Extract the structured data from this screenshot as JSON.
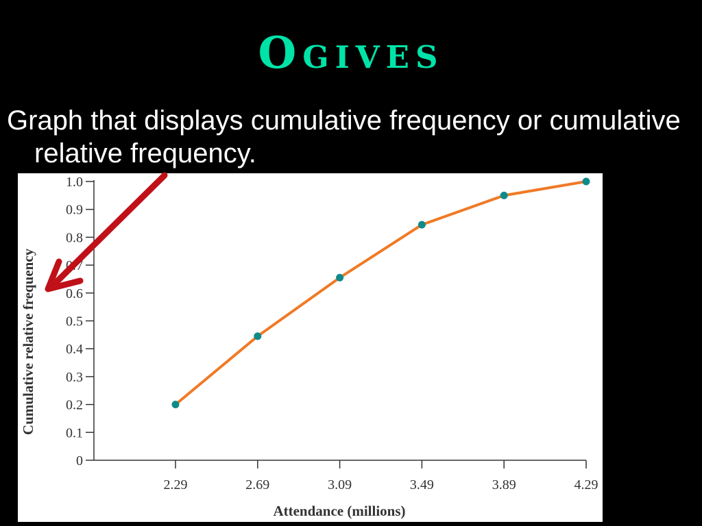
{
  "slide": {
    "title": "Ogives",
    "bullet": "Graph that displays cumulative frequency or cumulative relative frequency."
  },
  "colors": {
    "background": "#000000",
    "title": "#00e3a8",
    "line": "#f07a26",
    "marker": "#0f8a8a",
    "arrow": "#c01018",
    "axis": "#333333"
  },
  "chart_data": {
    "type": "line",
    "title": "",
    "xlabel": "Attendance (millions)",
    "ylabel": "Cumulative relative frequency",
    "x_ticks": [
      "2.29",
      "2.69",
      "3.09",
      "3.49",
      "3.89",
      "4.29"
    ],
    "y_ticks": [
      "0",
      "0.1",
      "0.2",
      "0.3",
      "0.4",
      "0.5",
      "0.6",
      "0.7",
      "0.8",
      "0.9",
      "1.0"
    ],
    "ylim": [
      0,
      1.0
    ],
    "grid": false,
    "series": [
      {
        "x": [
          2.29,
          2.69,
          3.09,
          3.49,
          3.89,
          4.29
        ],
        "values": [
          0.2,
          0.445,
          0.655,
          0.845,
          0.95,
          1.0
        ]
      }
    ]
  },
  "annotations": {
    "arrow_icon": "arrow-down-left-icon"
  }
}
